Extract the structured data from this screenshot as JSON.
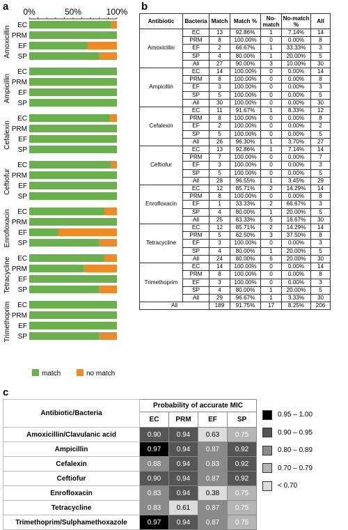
{
  "panels": {
    "a": "a",
    "b": "b",
    "c": "c"
  },
  "chart_data": {
    "type": "bar",
    "orientation": "horizontal-stacked",
    "x_ticks": [
      "0%",
      "50%",
      "100%"
    ],
    "xlim": [
      0,
      100
    ],
    "legend": {
      "placement": "bottom",
      "items": [
        "match",
        "no match"
      ]
    },
    "series_colors": {
      "match": "#6ab04c",
      "no match": "#f08a24"
    },
    "groups": [
      {
        "antibiotic": "Amoxicillin",
        "bars": [
          {
            "label": "EC",
            "match": 92.86
          },
          {
            "label": "PRM",
            "match": 100
          },
          {
            "label": "EF",
            "match": 66.67
          },
          {
            "label": "SP",
            "match": 80
          }
        ]
      },
      {
        "antibiotic": "Ampicillin",
        "bars": [
          {
            "label": "EC",
            "match": 100
          },
          {
            "label": "PRM",
            "match": 100
          },
          {
            "label": "EF",
            "match": 100
          },
          {
            "label": "SP",
            "match": 100
          }
        ]
      },
      {
        "antibiotic": "Cefalexin",
        "bars": [
          {
            "label": "EC",
            "match": 91.67
          },
          {
            "label": "PRM",
            "match": 100
          },
          {
            "label": "EF",
            "match": 100
          },
          {
            "label": "SP",
            "match": 100
          }
        ]
      },
      {
        "antibiotic": "Ceftiofur",
        "bars": [
          {
            "label": "EC",
            "match": 92.86
          },
          {
            "label": "PRM",
            "match": 100
          },
          {
            "label": "EF",
            "match": 100
          },
          {
            "label": "SP",
            "match": 100
          }
        ]
      },
      {
        "antibiotic": "Enrofloxacin",
        "bars": [
          {
            "label": "EC",
            "match": 85.71
          },
          {
            "label": "PRM",
            "match": 100
          },
          {
            "label": "EF",
            "match": 33.33
          },
          {
            "label": "SP",
            "match": 80
          }
        ]
      },
      {
        "antibiotic": "Tetracycline",
        "bars": [
          {
            "label": "EC",
            "match": 85.71
          },
          {
            "label": "PRM",
            "match": 62.5
          },
          {
            "label": "EF",
            "match": 100
          },
          {
            "label": "SP",
            "match": 80
          }
        ]
      },
      {
        "antibiotic": "Trimethoprim",
        "bars": [
          {
            "label": "EC",
            "match": 100
          },
          {
            "label": "PRM",
            "match": 100
          },
          {
            "label": "EF",
            "match": 100
          },
          {
            "label": "SP",
            "match": 80
          }
        ]
      }
    ]
  },
  "table_b": {
    "headers": [
      "Antibiotic",
      "Bacteria",
      "Match",
      "Match %",
      "No-match",
      "No-match %",
      "All"
    ],
    "groups": [
      {
        "antibiotic": "Amoxicillin",
        "rows": [
          [
            "EC",
            "13",
            "92.86%",
            "1",
            "7.14%",
            "14"
          ],
          [
            "PRM",
            "8",
            "100.00%",
            "0",
            "0.00%",
            "8"
          ],
          [
            "EF",
            "2",
            "66.67%",
            "1",
            "33.33%",
            "3"
          ],
          [
            "SP",
            "4",
            "80.00%",
            "1",
            "20.00%",
            "5"
          ],
          [
            "All",
            "27",
            "90.00%",
            "3",
            "10.00%",
            "30"
          ]
        ]
      },
      {
        "antibiotic": "Ampicillin",
        "rows": [
          [
            "EC",
            "14",
            "100.00%",
            "0",
            "0.00%",
            "14"
          ],
          [
            "PRM",
            "8",
            "100.00%",
            "0",
            "0.00%",
            "8"
          ],
          [
            "EF",
            "3",
            "100.00%",
            "0",
            "0.00%",
            "3"
          ],
          [
            "SP",
            "5",
            "100.00%",
            "0",
            "0.00%",
            "5"
          ],
          [
            "All",
            "30",
            "100.00%",
            "0",
            "0.00%",
            "30"
          ]
        ]
      },
      {
        "antibiotic": "Cefalexin",
        "rows": [
          [
            "EC",
            "11",
            "91.67%",
            "1",
            "8.33%",
            "12"
          ],
          [
            "PRM",
            "8",
            "100.00%",
            "0",
            "0.00%",
            "8"
          ],
          [
            "EF",
            "2",
            "100.00%",
            "0",
            "0.00%",
            "2"
          ],
          [
            "SP",
            "5",
            "100.00%",
            "0",
            "0.00%",
            "5"
          ],
          [
            "All",
            "26",
            "96.30%",
            "1",
            "3.70%",
            "27"
          ]
        ]
      },
      {
        "antibiotic": "Ceftiofur",
        "rows": [
          [
            "EC",
            "13",
            "92.86%",
            "1",
            "7.14%",
            "14"
          ],
          [
            "PRM",
            "7",
            "100.00%",
            "0",
            "0.00%",
            "7"
          ],
          [
            "EF",
            "3",
            "100.00%",
            "0",
            "0.00%",
            "3"
          ],
          [
            "SP",
            "5",
            "100.00%",
            "0",
            "0.00%",
            "5"
          ],
          [
            "All",
            "28",
            "96.55%",
            "1",
            "3.45%",
            "29"
          ]
        ]
      },
      {
        "antibiotic": "Enrofloxacin",
        "rows": [
          [
            "EC",
            "12",
            "85.71%",
            "2",
            "14.29%",
            "14"
          ],
          [
            "PRM",
            "8",
            "100.00%",
            "0",
            "0.00%",
            "8"
          ],
          [
            "EF",
            "1",
            "33.33%",
            "2",
            "66.67%",
            "3"
          ],
          [
            "SP",
            "4",
            "80.00%",
            "1",
            "20.00%",
            "5"
          ],
          [
            "All",
            "25",
            "83.33%",
            "5",
            "16.67%",
            "30"
          ]
        ]
      },
      {
        "antibiotic": "Tetracycline",
        "rows": [
          [
            "EC",
            "12",
            "85.71%",
            "2",
            "14.29%",
            "14"
          ],
          [
            "PRM",
            "5",
            "62.50%",
            "3",
            "37.50%",
            "8"
          ],
          [
            "EF",
            "3",
            "100.00%",
            "0",
            "0.00%",
            "3"
          ],
          [
            "SP",
            "4",
            "80.00%",
            "1",
            "20.00%",
            "5"
          ],
          [
            "All",
            "24",
            "80.00%",
            "6",
            "20.00%",
            "30"
          ]
        ]
      },
      {
        "antibiotic": "Trimethoprim",
        "rows": [
          [
            "EC",
            "14",
            "100.00%",
            "0",
            "0.00%",
            "14"
          ],
          [
            "PRM",
            "8",
            "100.00%",
            "0",
            "0.00%",
            "8"
          ],
          [
            "EF",
            "3",
            "100.00%",
            "0",
            "0.00%",
            "3"
          ],
          [
            "SP",
            "4",
            "80.00%",
            "1",
            "20.00%",
            "5"
          ],
          [
            "All",
            "29",
            "96.67%",
            "1",
            "3.33%",
            "30"
          ]
        ]
      }
    ],
    "total": {
      "label": "All",
      "cells": [
        "189",
        "91.75%",
        "17",
        "8.25%",
        "206"
      ]
    }
  },
  "table_c": {
    "row_header": "Antibiotic/Bacteria",
    "group_header": "Probability of accurate MIC",
    "columns": [
      "EC",
      "PRM",
      "EF",
      "SP"
    ],
    "rows": [
      {
        "name": "Amoxicillin/Clavulanic acid",
        "values": [
          "0.90",
          "0.94",
          "0.63",
          "0.75"
        ]
      },
      {
        "name": "Ampicillin",
        "values": [
          "0.97",
          "0.94",
          "0.87",
          "0.92"
        ]
      },
      {
        "name": "Cefalexin",
        "values": [
          "0.88",
          "0.94",
          "0.83",
          "0.92"
        ]
      },
      {
        "name": "Ceftiofur",
        "values": [
          "0.90",
          "0.94",
          "0.87",
          "0.92"
        ]
      },
      {
        "name": "Enrofloxacin",
        "values": [
          "0.83",
          "0.94",
          "0.38",
          "0.75"
        ]
      },
      {
        "name": "Tetracycline",
        "values": [
          "0.83",
          "0.61",
          "0.87",
          "0.75"
        ]
      },
      {
        "name": "Trimethoprim/Sulphamethoxazole",
        "values": [
          "0.97",
          "0.94",
          "0.87",
          "0.75"
        ]
      }
    ],
    "legend": [
      {
        "label": "0.95 – 1.00",
        "color": "#000000"
      },
      {
        "label": "0.90 – 0.95",
        "color": "#555555"
      },
      {
        "label": "0.80 – 0.89",
        "color": "#8a8a8a"
      },
      {
        "label": "0.70 – 0.79",
        "color": "#b5b5b5"
      },
      {
        "label": "< 0.70",
        "color": "#dcdcdc"
      }
    ]
  }
}
